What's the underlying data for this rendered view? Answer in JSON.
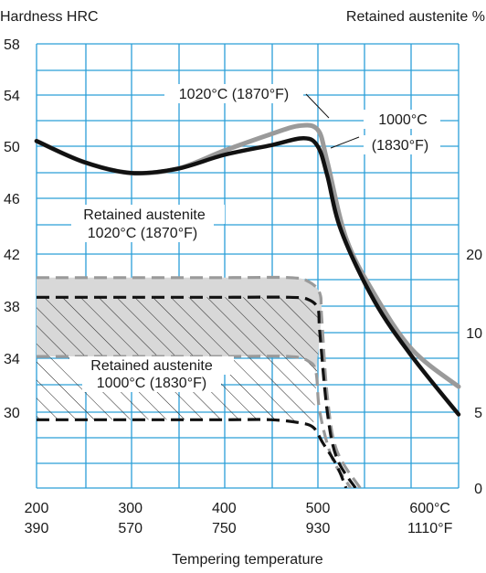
{
  "chart_data": {
    "type": "line",
    "title": "",
    "ylabel_left": "Hardness HRC",
    "ylabel_right": "Retained austenite %",
    "xlabel": "Tempering temperature",
    "x_range": [
      200,
      650
    ],
    "y_left_range": [
      26,
      58
    ],
    "y_right_range": [
      0,
      20
    ],
    "x_ticks": [
      {
        "c": 200,
        "f": 390,
        "c_label": "200",
        "f_label": "390"
      },
      {
        "c": 300,
        "f": 570,
        "c_label": "300",
        "f_label": "570"
      },
      {
        "c": 400,
        "f": 750,
        "c_label": "400",
        "f_label": "750"
      },
      {
        "c": 500,
        "f": 930,
        "c_label": "500",
        "f_label": "930"
      },
      {
        "c": 600,
        "f": 1110,
        "c_label": "600°C",
        "f_label": "1110°F"
      }
    ],
    "y_left_ticks": [
      "58",
      "54",
      "50",
      "46",
      "42",
      "38",
      "34",
      "30"
    ],
    "y_right_ticks": [
      "20",
      "10",
      "5",
      "0"
    ],
    "grid": true,
    "hardness_series": [
      {
        "name": "1020°C (1870°F)",
        "color": "#9a9a9a",
        "points": [
          [
            200,
            51
          ],
          [
            250,
            49.5
          ],
          [
            300,
            48.7
          ],
          [
            350,
            49
          ],
          [
            400,
            50.3
          ],
          [
            450,
            51.5
          ],
          [
            480,
            52.1
          ],
          [
            500,
            51.8
          ],
          [
            510,
            49.5
          ],
          [
            530,
            44
          ],
          [
            560,
            40
          ],
          [
            600,
            36
          ],
          [
            650,
            33.3
          ]
        ]
      },
      {
        "name": "1000°C (1830°F)",
        "color": "#111111",
        "points": [
          [
            200,
            51
          ],
          [
            250,
            49.5
          ],
          [
            300,
            48.7
          ],
          [
            350,
            49
          ],
          [
            400,
            50
          ],
          [
            450,
            50.7
          ],
          [
            485,
            51.2
          ],
          [
            500,
            50.6
          ],
          [
            510,
            48.5
          ],
          [
            525,
            44.5
          ],
          [
            560,
            39.5
          ],
          [
            600,
            35.5
          ],
          [
            650,
            31.3
          ]
        ]
      }
    ],
    "retained_austenite_series": [
      {
        "name": "Retained austenite 1020°C (1870°F)",
        "color": "#9a9a9a",
        "fill": "#d8d8d8",
        "upper_percent": [
          [
            200,
            17
          ],
          [
            300,
            17
          ],
          [
            400,
            17
          ],
          [
            470,
            17
          ],
          [
            490,
            16.5
          ],
          [
            502,
            15
          ],
          [
            504,
            12
          ],
          [
            510,
            6
          ],
          [
            520,
            2.5
          ],
          [
            545,
            0
          ]
        ],
        "lower_percent": [
          [
            200,
            8.5
          ],
          [
            300,
            8.5
          ],
          [
            400,
            8.5
          ],
          [
            470,
            8.5
          ],
          [
            490,
            8.2
          ],
          [
            498,
            7.5
          ],
          [
            502,
            5
          ],
          [
            515,
            2
          ],
          [
            535,
            0
          ]
        ]
      },
      {
        "name": "Retained austenite 1000°C (1830°F)",
        "color": "#111111",
        "upper_percent": [
          [
            200,
            14.5
          ],
          [
            300,
            14.5
          ],
          [
            400,
            14.5
          ],
          [
            470,
            14.5
          ],
          [
            490,
            14.2
          ],
          [
            500,
            13
          ],
          [
            502,
            10
          ],
          [
            510,
            5
          ],
          [
            520,
            2
          ],
          [
            540,
            0
          ]
        ],
        "lower_percent": [
          [
            200,
            4.5
          ],
          [
            300,
            4.5
          ],
          [
            400,
            4.5
          ],
          [
            450,
            4.5
          ],
          [
            480,
            4.3
          ],
          [
            495,
            4
          ],
          [
            505,
            3
          ],
          [
            520,
            1.5
          ],
          [
            530,
            0
          ]
        ]
      }
    ],
    "labels": {
      "hardness_1020": "1020°C (1870°F)",
      "hardness_1000_a": "1000°C",
      "hardness_1000_b": "(1830°F)",
      "ra_1020_a": "Retained austenite",
      "ra_1020_b": "1020°C (1870°F)",
      "ra_1000_a": "Retained austenite",
      "ra_1000_b": "1000°C (1830°F)"
    }
  }
}
